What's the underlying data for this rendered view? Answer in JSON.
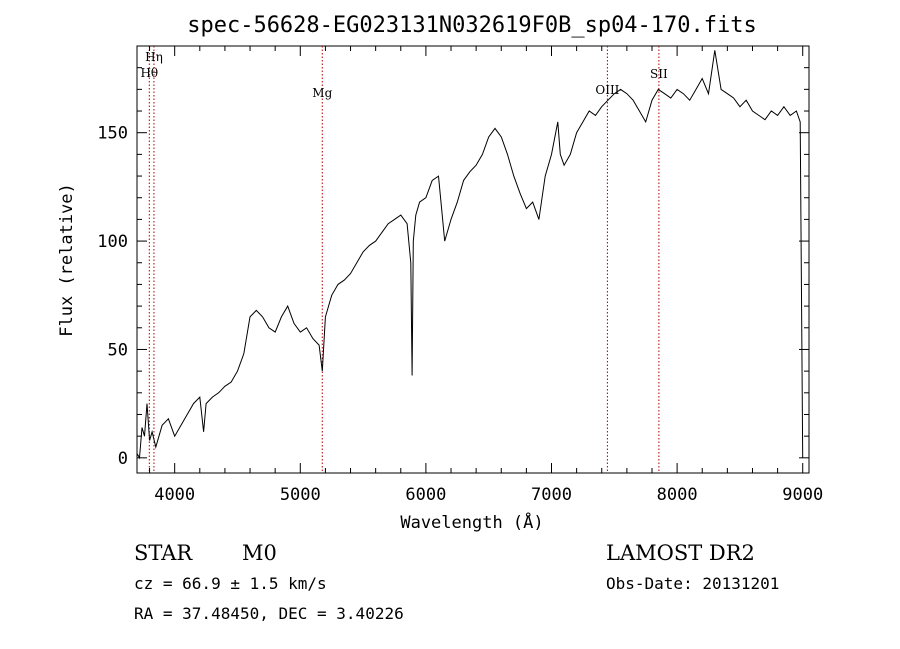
{
  "chart_data": {
    "type": "line",
    "title": "spec-56628-EG023131N032619F0B_sp04-170.fits",
    "xlabel": "Wavelength (Å)",
    "ylabel": "Flux (relative)",
    "xlim": [
      3700,
      9050
    ],
    "ylim": [
      -7,
      190
    ],
    "xticks": [
      4000,
      5000,
      6000,
      7000,
      8000,
      9000
    ],
    "yticks": [
      0,
      50,
      100,
      150
    ],
    "grid": false,
    "series": [
      {
        "x": [
          3700,
          3720,
          3740,
          3760,
          3780,
          3800,
          3820,
          3850,
          3900,
          3950,
          4000,
          4050,
          4100,
          4150,
          4200,
          4230,
          4250,
          4300,
          4350,
          4400,
          4450,
          4500,
          4550,
          4600,
          4650,
          4700,
          4750,
          4800,
          4850,
          4900,
          4950,
          5000,
          5050,
          5100,
          5150,
          5175,
          5200,
          5250,
          5300,
          5350,
          5400,
          5450,
          5500,
          5550,
          5600,
          5650,
          5700,
          5750,
          5800,
          5850,
          5880,
          5890,
          5900,
          5920,
          5950,
          6000,
          6050,
          6100,
          6150,
          6200,
          6250,
          6300,
          6350,
          6400,
          6450,
          6500,
          6550,
          6600,
          6650,
          6700,
          6750,
          6800,
          6850,
          6900,
          6950,
          7000,
          7050,
          7070,
          7100,
          7150,
          7200,
          7250,
          7300,
          7350,
          7400,
          7450,
          7500,
          7550,
          7600,
          7650,
          7700,
          7750,
          7800,
          7850,
          7900,
          7950,
          8000,
          8050,
          8100,
          8150,
          8200,
          8250,
          8300,
          8350,
          8400,
          8450,
          8500,
          8550,
          8600,
          8650,
          8700,
          8750,
          8800,
          8850,
          8900,
          8950,
          8980,
          9000
        ],
        "y": [
          2,
          0,
          14,
          10,
          25,
          8,
          12,
          5,
          15,
          18,
          10,
          15,
          20,
          25,
          28,
          12,
          25,
          28,
          30,
          33,
          35,
          40,
          48,
          65,
          68,
          65,
          60,
          58,
          65,
          70,
          62,
          58,
          60,
          55,
          52,
          40,
          65,
          75,
          80,
          82,
          85,
          90,
          95,
          98,
          100,
          104,
          108,
          110,
          112,
          108,
          90,
          38,
          100,
          112,
          118,
          120,
          128,
          130,
          100,
          110,
          118,
          128,
          132,
          135,
          140,
          148,
          152,
          148,
          140,
          130,
          122,
          115,
          118,
          110,
          130,
          140,
          155,
          140,
          135,
          140,
          150,
          155,
          160,
          158,
          162,
          165,
          168,
          170,
          168,
          165,
          160,
          155,
          165,
          170,
          168,
          166,
          170,
          168,
          165,
          170,
          175,
          168,
          188,
          170,
          168,
          166,
          162,
          165,
          160,
          158,
          156,
          160,
          158,
          162,
          158,
          160,
          155,
          0
        ]
      }
    ],
    "lines": [
      {
        "label": "Hη",
        "x": 3835
      },
      {
        "label": "Hθ",
        "x": 3798
      },
      {
        "label": "Mg",
        "x": 5175
      },
      {
        "label": "OIII",
        "x": 7445
      },
      {
        "label": "SII",
        "x": 7855
      }
    ]
  },
  "info": {
    "object_class": "STAR",
    "subclass": "M0",
    "redshift": "cz =  66.9 ± 1.5 km/s",
    "coords": "RA =  37.48450, DEC =   3.40226",
    "survey": "LAMOST DR2",
    "obs_date": "Obs-Date: 20131201"
  },
  "colors": {
    "spectrum": "#000000",
    "line_markers": "#b00000",
    "axis": "#000000"
  }
}
